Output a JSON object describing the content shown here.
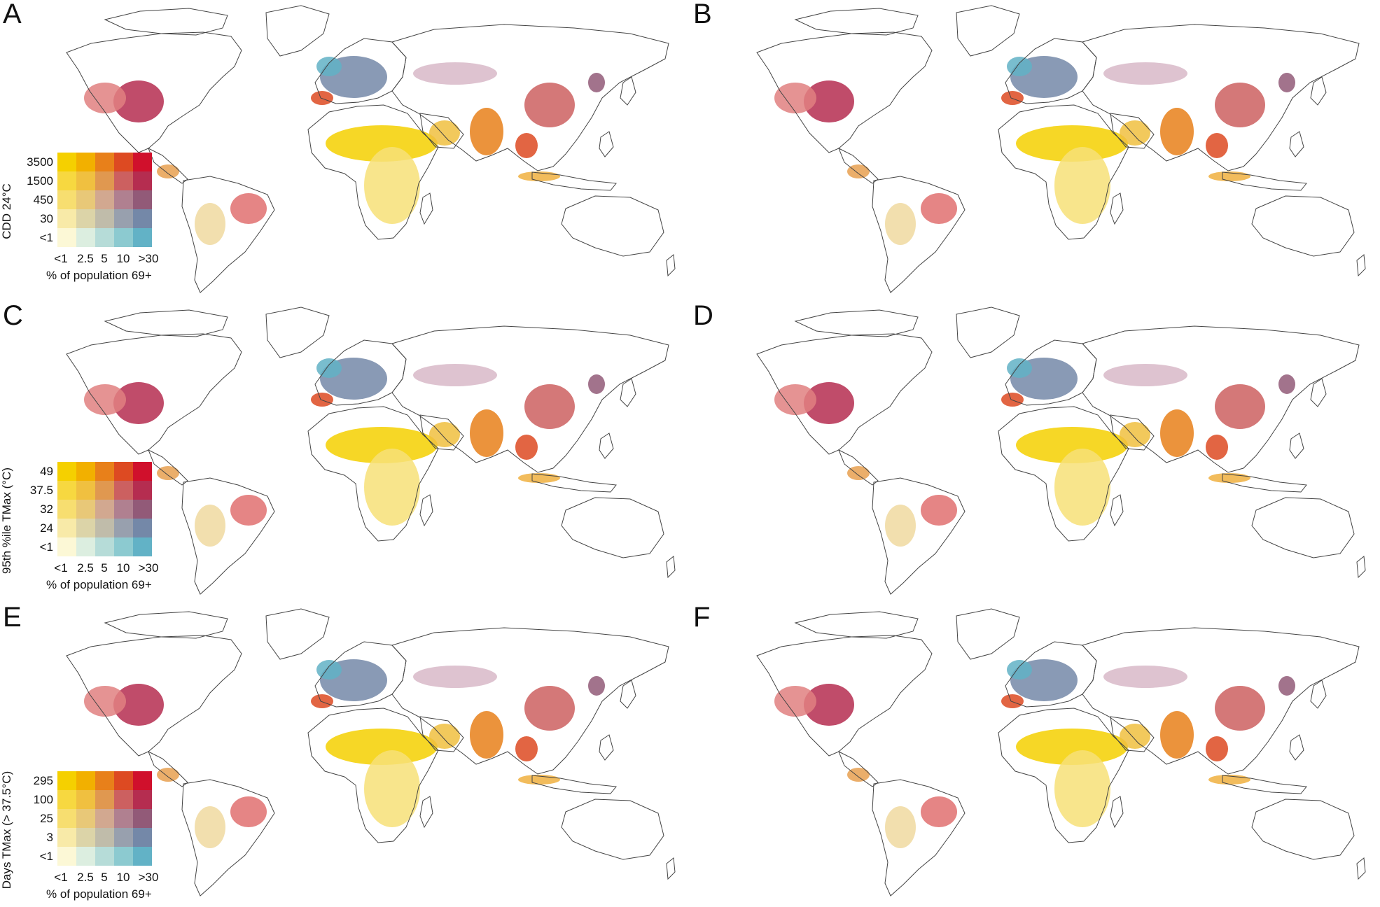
{
  "panels": [
    {
      "letter": "A",
      "legend": {
        "title": "CDD 24°C",
        "y_ticks": [
          "3500",
          "1500",
          "450",
          "30",
          "<1"
        ],
        "x_ticks": [
          "<1",
          "2.5",
          "5",
          "10",
          ">30"
        ],
        "x_title": "% of population 69+"
      }
    },
    {
      "letter": "B"
    },
    {
      "letter": "C",
      "legend": {
        "title": "95th %ile TMax (°C)",
        "y_ticks": [
          "49",
          "37.5",
          "32",
          "24",
          "<1"
        ],
        "x_ticks": [
          "<1",
          "2.5",
          "5",
          "10",
          ">30"
        ],
        "x_title": "% of population 69+"
      }
    },
    {
      "letter": "D"
    },
    {
      "letter": "E",
      "legend": {
        "title": "Days TMax (> 37.5°C)",
        "y_ticks": [
          "295",
          "100",
          "25",
          "3",
          "<1"
        ],
        "x_ticks": [
          "<1",
          "2.5",
          "5",
          "10",
          ">30"
        ],
        "x_title": "% of population 69+"
      }
    },
    {
      "letter": "F"
    }
  ],
  "colors": {
    "bivariate_grid": [
      [
        "#f5d000",
        "#f2b000",
        "#e8801a",
        "#dd4a22",
        "#d0102c"
      ],
      [
        "#f7d840",
        "#f0c040",
        "#e09850",
        "#cc6060",
        "#b52d50"
      ],
      [
        "#f7de70",
        "#e8c878",
        "#d2a890",
        "#b08090",
        "#925a78"
      ],
      [
        "#f8eaa8",
        "#dcd4a8",
        "#c0bcaa",
        "#98a0ae",
        "#7488a8"
      ],
      [
        "#fcf8d6",
        "#dceee0",
        "#b6dcd8",
        "#8ccad0",
        "#62b2c6"
      ]
    ],
    "coast": "#444444"
  }
}
